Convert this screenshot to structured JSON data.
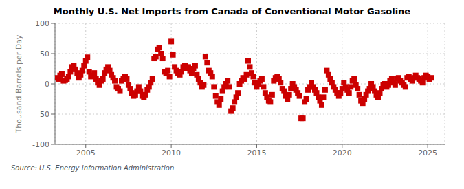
{
  "chart_data": {
    "type": "scatter",
    "title": "Monthly U.S. Net Imports from Canada of Conventional Motor Gasoline",
    "ylabel": "Thousand Barrels per Day",
    "annotations": [
      "Source: U.S. Energy Information Administration"
    ],
    "color": "#cc0000",
    "marker": "square",
    "grid": true,
    "xlim": [
      2003.2,
      2026.0
    ],
    "xticks": [
      2005,
      2010,
      2015,
      2020,
      2025
    ],
    "ylim": [
      -100,
      100
    ],
    "yticks": [
      -100,
      -50,
      0,
      50,
      100
    ],
    "x": [
      2003.3,
      2003.4,
      2003.5,
      2003.6,
      2003.7,
      2003.8,
      2003.9,
      2004.0,
      2004.1,
      2004.2,
      2004.3,
      2004.4,
      2004.5,
      2004.6,
      2004.7,
      2004.8,
      2004.9,
      2005.0,
      2005.1,
      2005.2,
      2005.3,
      2005.4,
      2005.5,
      2005.6,
      2005.7,
      2005.8,
      2005.9,
      2006.0,
      2006.1,
      2006.2,
      2006.3,
      2006.4,
      2006.5,
      2006.6,
      2006.7,
      2006.8,
      2006.9,
      2007.0,
      2007.1,
      2007.2,
      2007.3,
      2007.4,
      2007.5,
      2007.6,
      2007.7,
      2007.8,
      2007.9,
      2008.0,
      2008.1,
      2008.2,
      2008.3,
      2008.4,
      2008.5,
      2008.6,
      2008.7,
      2008.8,
      2008.9,
      2009.0,
      2009.1,
      2009.2,
      2009.3,
      2009.4,
      2009.5,
      2009.6,
      2009.7,
      2009.8,
      2009.9,
      2010.0,
      2010.1,
      2010.2,
      2010.3,
      2010.4,
      2010.5,
      2010.6,
      2010.7,
      2010.8,
      2010.9,
      2011.0,
      2011.1,
      2011.2,
      2011.3,
      2011.4,
      2011.5,
      2011.6,
      2011.7,
      2011.8,
      2011.9,
      2012.0,
      2012.1,
      2012.2,
      2012.3,
      2012.4,
      2012.5,
      2012.6,
      2012.7,
      2012.8,
      2012.9,
      2013.0,
      2013.1,
      2013.2,
      2013.3,
      2013.4,
      2013.5,
      2013.6,
      2013.7,
      2013.8,
      2013.9,
      2014.0,
      2014.1,
      2014.2,
      2014.3,
      2014.4,
      2014.5,
      2014.6,
      2014.7,
      2014.8,
      2014.9,
      2015.0,
      2015.1,
      2015.2,
      2015.3,
      2015.4,
      2015.5,
      2015.6,
      2015.7,
      2015.8,
      2015.9,
      2016.0,
      2016.1,
      2016.2,
      2016.3,
      2016.4,
      2016.5,
      2016.6,
      2016.7,
      2016.8,
      2016.9,
      2017.0,
      2017.1,
      2017.2,
      2017.3,
      2017.4,
      2017.5,
      2017.6,
      2017.7,
      2017.8,
      2017.9,
      2018.0,
      2018.1,
      2018.2,
      2018.3,
      2018.4,
      2018.5,
      2018.6,
      2018.7,
      2018.8,
      2018.9,
      2019.0,
      2019.1,
      2019.2,
      2019.3,
      2019.4,
      2019.5,
      2019.6,
      2019.7,
      2019.8,
      2019.9,
      2020.0,
      2020.1,
      2020.2,
      2020.3,
      2020.4,
      2020.5,
      2020.6,
      2020.7,
      2020.8,
      2020.9,
      2021.0,
      2021.1,
      2021.2,
      2021.3,
      2021.4,
      2021.5,
      2021.6,
      2021.7,
      2021.8,
      2021.9,
      2022.0,
      2022.1,
      2022.2,
      2022.3,
      2022.4,
      2022.5,
      2022.6,
      2022.7,
      2022.8,
      2022.9,
      2023.0,
      2023.1,
      2023.2,
      2023.3,
      2023.4,
      2023.5,
      2023.6,
      2023.7,
      2023.8,
      2023.9,
      2024.0,
      2024.1,
      2024.2,
      2024.3,
      2024.4,
      2024.5,
      2024.6,
      2024.7,
      2024.8,
      2024.9,
      2025.0,
      2025.1,
      2025.2
    ],
    "values": [
      10,
      8,
      14,
      16,
      5,
      6,
      8,
      12,
      20,
      28,
      30,
      24,
      18,
      10,
      15,
      22,
      30,
      38,
      44,
      20,
      12,
      14,
      18,
      8,
      2,
      -2,
      5,
      8,
      18,
      24,
      28,
      22,
      15,
      10,
      5,
      -5,
      -8,
      -12,
      5,
      8,
      12,
      8,
      -2,
      -8,
      -15,
      -20,
      -18,
      -12,
      -5,
      -12,
      -20,
      -22,
      -18,
      -10,
      -5,
      2,
      8,
      42,
      45,
      57,
      60,
      50,
      42,
      20,
      18,
      22,
      12,
      70,
      48,
      28,
      22,
      18,
      15,
      20,
      28,
      30,
      25,
      28,
      22,
      18,
      25,
      30,
      15,
      8,
      2,
      -5,
      -2,
      45,
      35,
      22,
      18,
      12,
      -5,
      -20,
      -30,
      -35,
      -25,
      -12,
      -5,
      0,
      5,
      -5,
      -45,
      -40,
      -30,
      -22,
      -15,
      0,
      5,
      10,
      8,
      15,
      38,
      28,
      18,
      12,
      2,
      -5,
      0,
      5,
      8,
      -5,
      -15,
      -22,
      -28,
      -30,
      -18,
      5,
      10,
      12,
      8,
      2,
      -8,
      -12,
      -20,
      -25,
      -18,
      -8,
      0,
      -5,
      -10,
      -15,
      -20,
      -57,
      -57,
      -30,
      -25,
      -10,
      -5,
      2,
      -5,
      -10,
      -15,
      -22,
      -28,
      -35,
      -22,
      -10,
      22,
      15,
      8,
      2,
      -5,
      -10,
      -15,
      -20,
      -15,
      -8,
      2,
      -5,
      -10,
      -15,
      -5,
      5,
      8,
      -2,
      -8,
      -18,
      -28,
      -32,
      -25,
      -18,
      -12,
      -8,
      0,
      -5,
      -12,
      -18,
      -22,
      -15,
      -8,
      -2,
      0,
      -5,
      -2,
      5,
      8,
      2,
      -2,
      8,
      10,
      5,
      2,
      -2,
      -5,
      10,
      12,
      8,
      5,
      10,
      14,
      10,
      8,
      5,
      2,
      10,
      14,
      12,
      8,
      10
    ]
  }
}
